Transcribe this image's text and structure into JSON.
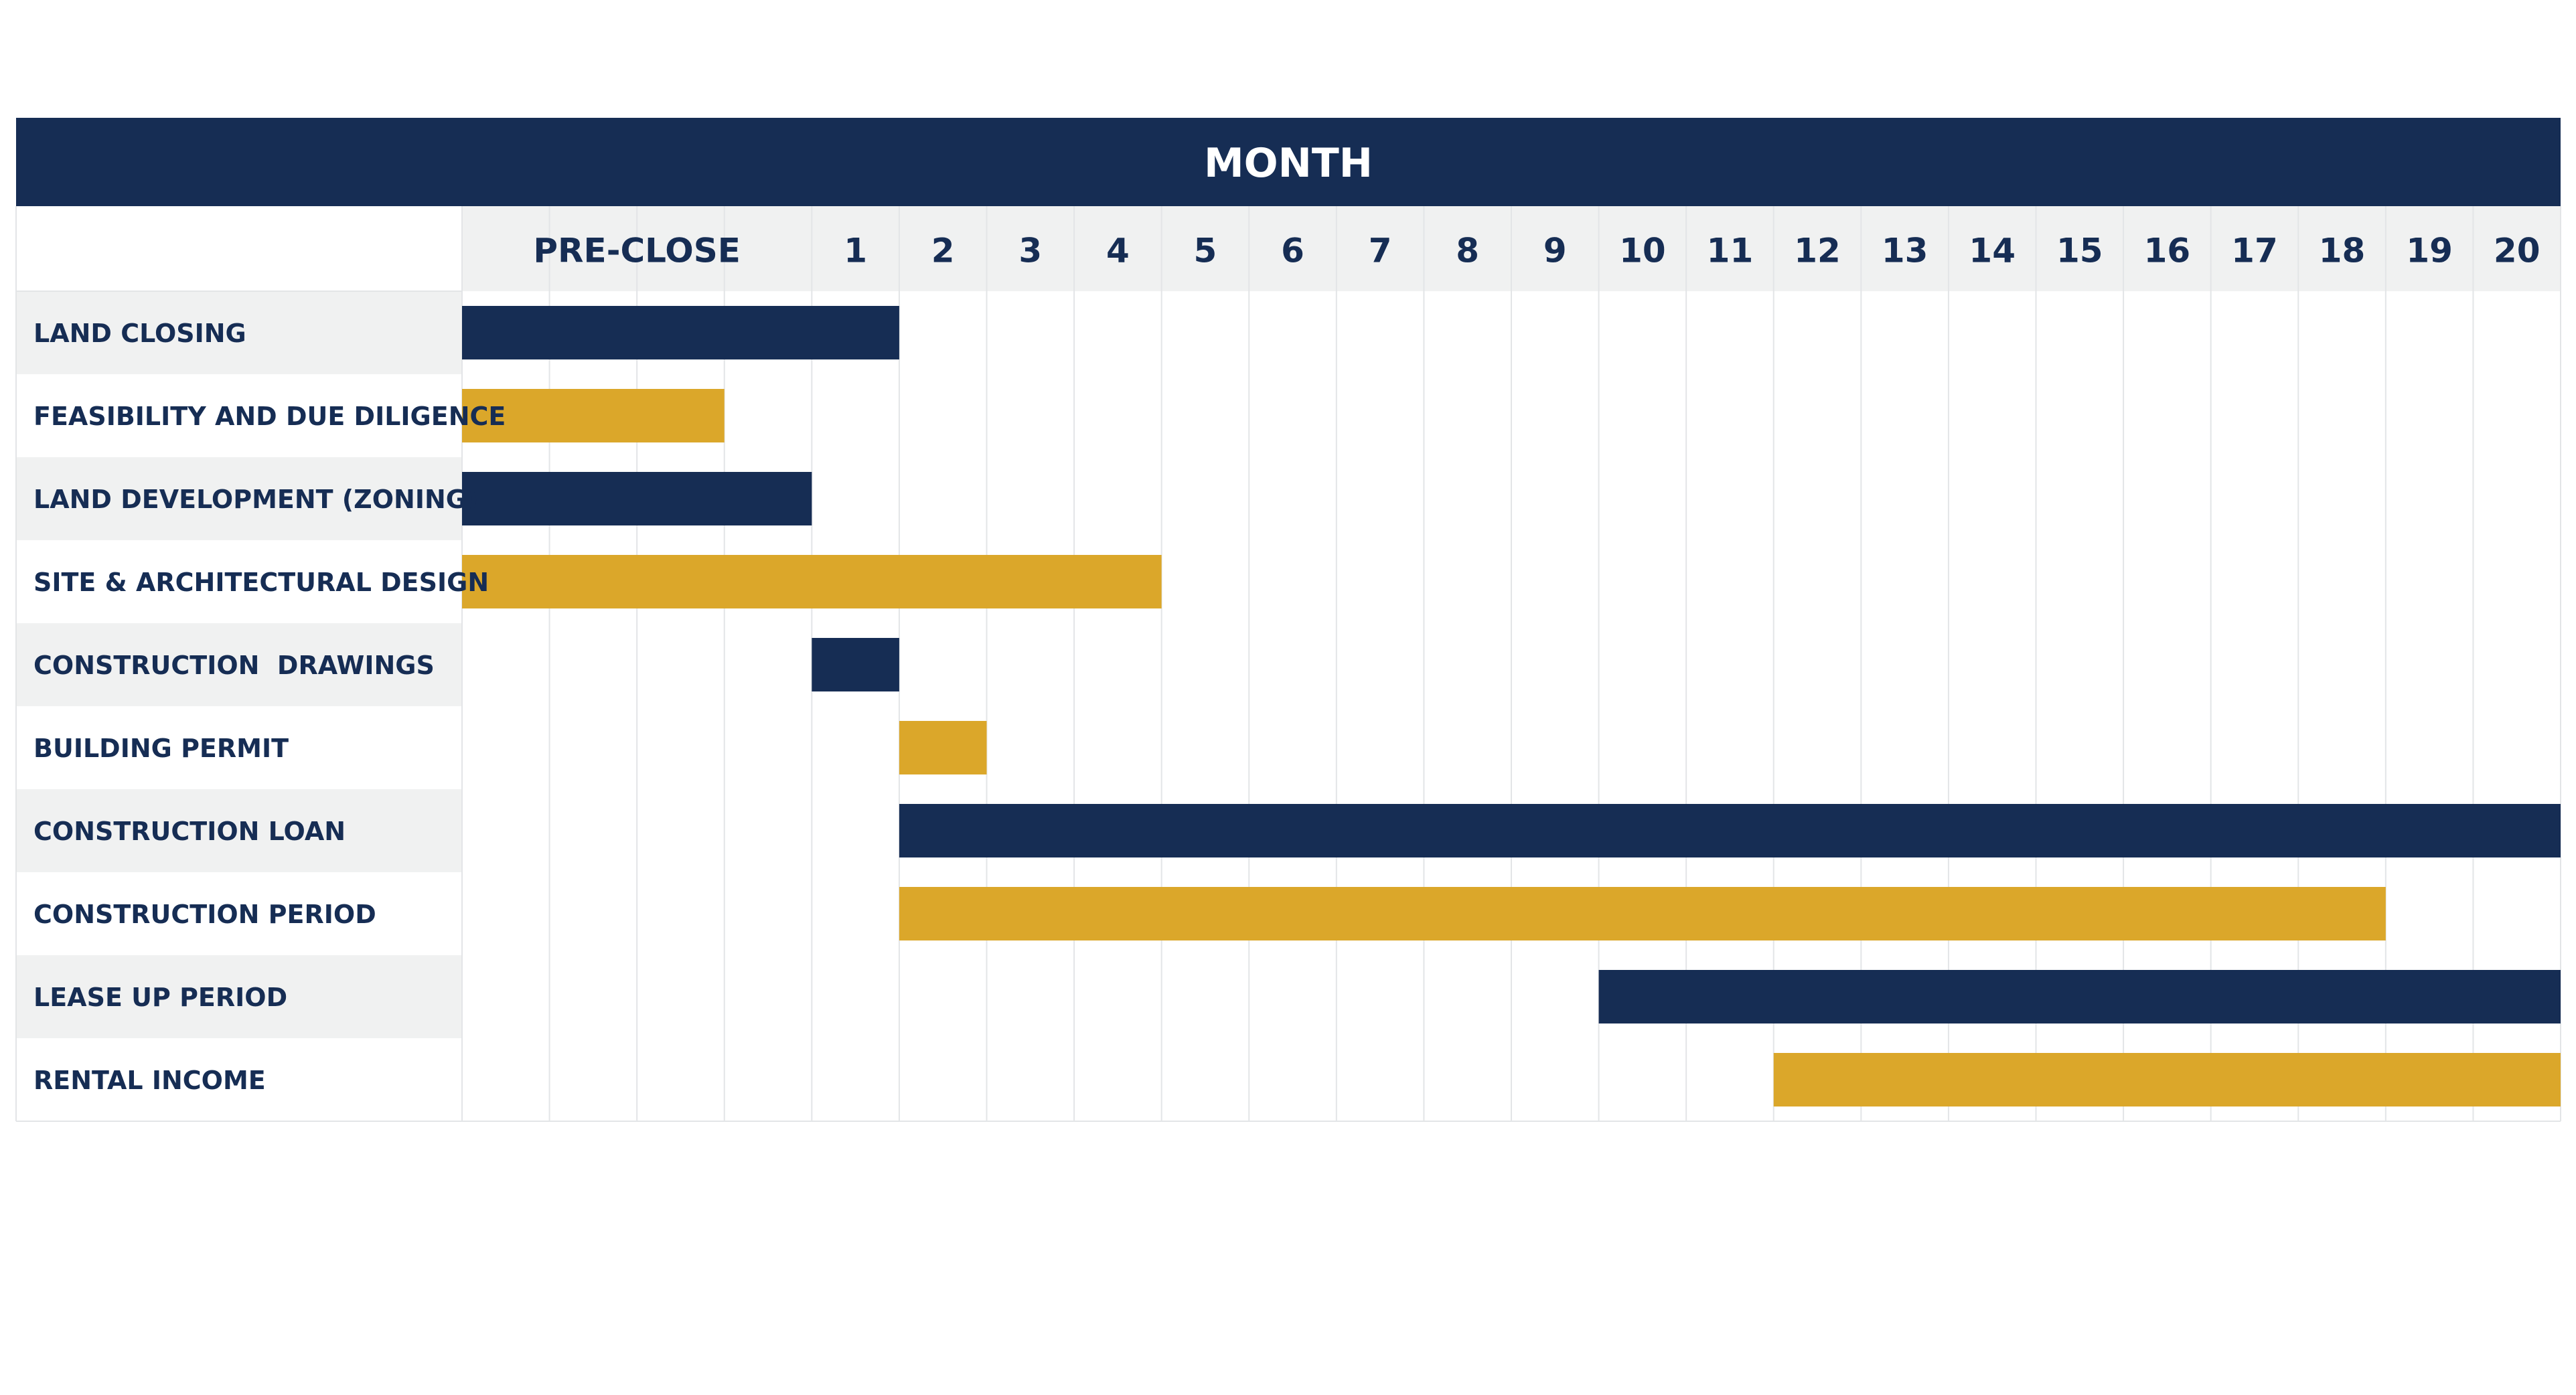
{
  "chart_data": {
    "type": "gantt",
    "title": "MONTH",
    "columns": [
      "PRE-CLOSE",
      "1",
      "2",
      "3",
      "4",
      "5",
      "6",
      "7",
      "8",
      "9",
      "10",
      "11",
      "12",
      "13",
      "14",
      "15",
      "16",
      "17",
      "18",
      "19",
      "20"
    ],
    "x_unit": "month",
    "x_range": [
      -4,
      20
    ],
    "tasks": [
      {
        "label": "LAND CLOSING",
        "start": -4,
        "end": 1
      },
      {
        "label": "FEASIBILITY AND DUE DILIGENCE",
        "start": -4,
        "end": -1
      },
      {
        "label": "LAND DEVELOPMENT (ZONING)",
        "start": -4,
        "end": 0
      },
      {
        "label": "SITE & ARCHITECTURAL DESIGN",
        "start": -4,
        "end": 4
      },
      {
        "label": "CONSTRUCTION  DRAWINGS",
        "start": 0,
        "end": 1
      },
      {
        "label": "BUILDING PERMIT",
        "start": 1,
        "end": 2
      },
      {
        "label": "CONSTRUCTION LOAN",
        "start": 1,
        "end": 20
      },
      {
        "label": "CONSTRUCTION PERIOD",
        "start": 1,
        "end": 18
      },
      {
        "label": "LEASE UP PERIOD",
        "start": 9,
        "end": 20
      },
      {
        "label": "RENTAL INCOME",
        "start": 11,
        "end": 20
      }
    ],
    "colors": {
      "navy": "#162d54",
      "gold": "#dba72a",
      "stripe": "#f0f1f1",
      "grid": "#e3e5e7",
      "header_text": "#ffffff",
      "label_text": "#162d54"
    },
    "bar_color_pattern": [
      "navy",
      "gold"
    ],
    "grid": true
  }
}
